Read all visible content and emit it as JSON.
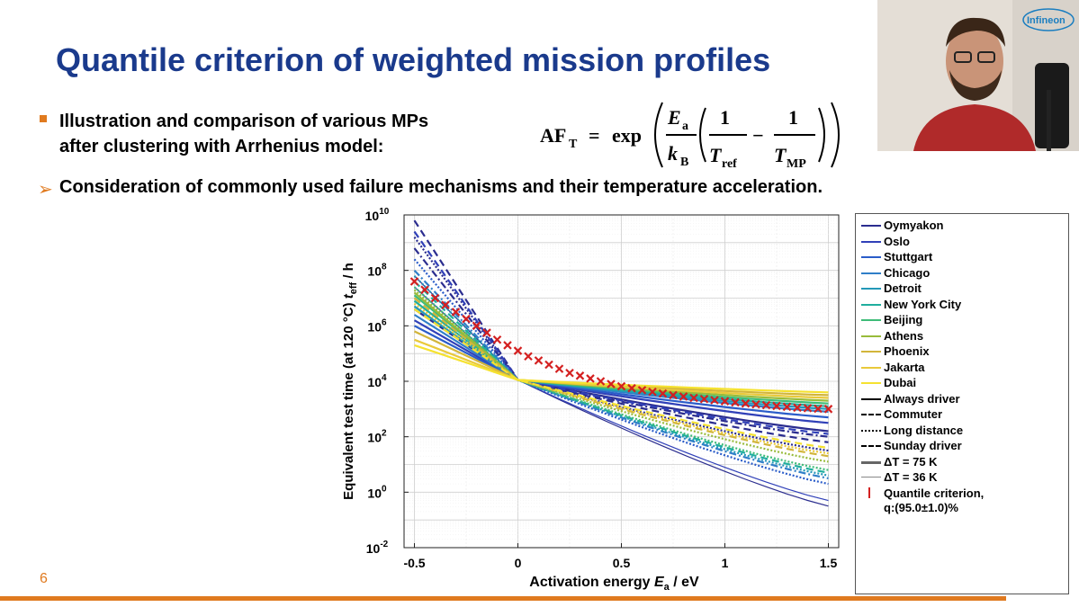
{
  "slide": {
    "title": "Quantile criterion of weighted mission profiles",
    "bullet_line1": "Illustration and comparison of various MPs",
    "bullet_line2": "after clustering with Arrhenius model:",
    "consideration": "Consideration of commonly used failure mechanisms and their temperature acceleration.",
    "page_number": "6",
    "logo_text": "Infineon",
    "formula": {
      "lhs": "AF",
      "lhs_sub": "T",
      "equals": "=",
      "exp": "exp",
      "ea": "E",
      "ea_sub": "a",
      "kb": "k",
      "kb_sub": "B",
      "one": "1",
      "tref": "T",
      "tref_sub": "ref",
      "minus": "−",
      "tmp": "T",
      "tmp_sub": "MP"
    }
  },
  "colors": {
    "title": "#1a3a8c",
    "accent": "#e07a1f",
    "quantile_marker": "#d42020"
  },
  "legend": [
    {
      "label": "Oymyakon",
      "color": "#2b2d8f",
      "style": "solid"
    },
    {
      "label": "Oslo",
      "color": "#3040b8",
      "style": "solid"
    },
    {
      "label": "Stuttgart",
      "color": "#2a5cc9",
      "style": "solid"
    },
    {
      "label": "Chicago",
      "color": "#2f7ec8",
      "style": "solid"
    },
    {
      "label": "Detroit",
      "color": "#2398b8",
      "style": "solid"
    },
    {
      "label": "New York City",
      "color": "#1fae9e",
      "style": "solid"
    },
    {
      "label": "Beijing",
      "color": "#3fbc78",
      "style": "solid"
    },
    {
      "label": "Athens",
      "color": "#98bb3a",
      "style": "solid"
    },
    {
      "label": "Phoenix",
      "color": "#d2b53a",
      "style": "solid"
    },
    {
      "label": "Jakarta",
      "color": "#e9c93a",
      "style": "solid"
    },
    {
      "label": "Dubai",
      "color": "#f5e230",
      "style": "solid"
    },
    {
      "label": "Always driver",
      "color": "#000000",
      "style": "solid"
    },
    {
      "label": "Commuter",
      "color": "#000000",
      "style": "dashed"
    },
    {
      "label": "Long distance",
      "color": "#000000",
      "style": "dotted"
    },
    {
      "label": "Sunday driver",
      "color": "#000000",
      "style": "dashdot"
    },
    {
      "label": "ΔT = 75 K",
      "color": "#666666",
      "style": "thick"
    },
    {
      "label": "ΔT = 36 K",
      "color": "#888888",
      "style": "thin"
    },
    {
      "label": "Quantile criterion,",
      "label2": "q:(95.0±1.0)%",
      "color": "#d42020",
      "style": "marker"
    }
  ],
  "chart_data": {
    "type": "line",
    "xlabel": "Activation energy Ea / eV",
    "ylabel": "Equivalent test time (at 120 °C) teff / h",
    "x_axis_label_main": "Activation energy ",
    "x_axis_label_var": "E",
    "x_axis_label_sub": "a",
    "x_axis_label_unit": " / eV",
    "y_axis_label_main": "Equivalent test time (at 120 °C) ",
    "y_axis_label_var": "t",
    "y_axis_label_sub": "eff",
    "y_axis_label_unit": " / h",
    "xlim": [
      -0.55,
      1.55
    ],
    "ylim_log10": [
      -2,
      10
    ],
    "y_scale": "log",
    "grid": true,
    "x_ticks": [
      "-0.5",
      "0",
      "0.5",
      "1",
      "1.5"
    ],
    "x_tick_values": [
      -0.5,
      0,
      0.5,
      1,
      1.5
    ],
    "y_ticks": [
      {
        "base": "10",
        "exp": "-2",
        "value": -2
      },
      {
        "base": "10",
        "exp": "0",
        "value": 0
      },
      {
        "base": "10",
        "exp": "2",
        "value": 2
      },
      {
        "base": "10",
        "exp": "4",
        "value": 4
      },
      {
        "base": "10",
        "exp": "6",
        "value": 6
      },
      {
        "base": "10",
        "exp": "8",
        "value": 8
      },
      {
        "base": "10",
        "exp": "10",
        "value": 10
      }
    ],
    "pivot": {
      "x": 0,
      "log10_y": 4.05
    },
    "series": [
      {
        "name": "Oymyakon",
        "color": "#2b2d8f",
        "profiles": [
          {
            "style": "solid",
            "log10_y_at_-0.5": 6.6,
            "log10_y_at_1.5": 2.2
          },
          {
            "style": "dashed",
            "log10_y_at_-0.5": 9.8,
            "log10_y_at_1.5": 1.8
          },
          {
            "style": "dotted",
            "log10_y_at_-0.5": 9.2,
            "log10_y_at_1.5": 1.5
          },
          {
            "style": "dashdot",
            "log10_y_at_-0.5": 8.8,
            "log10_y_at_1.5": 2.0
          },
          {
            "style": "thin",
            "log10_y_at_-0.5": 7.8,
            "log10_y_at_1.5": -0.5
          }
        ]
      },
      {
        "name": "Oslo",
        "color": "#3040b8",
        "profiles": [
          {
            "style": "solid",
            "log10_y_at_-0.5": 6.2,
            "log10_y_at_1.5": 2.5
          },
          {
            "style": "dashed",
            "log10_y_at_-0.5": 9.4,
            "log10_y_at_1.5": 2.1
          },
          {
            "style": "thin",
            "log10_y_at_-0.5": 7.4,
            "log10_y_at_1.5": -0.3
          }
        ]
      },
      {
        "name": "Stuttgart",
        "color": "#2a5cc9",
        "profiles": [
          {
            "style": "solid",
            "log10_y_at_-0.5": 6.0,
            "log10_y_at_1.5": 2.7
          },
          {
            "style": "dotted",
            "log10_y_at_-0.5": 8.4,
            "log10_y_at_1.5": 0.3
          }
        ]
      },
      {
        "name": "Chicago",
        "color": "#2f7ec8",
        "profiles": [
          {
            "style": "solid",
            "log10_y_at_-0.5": 6.4,
            "log10_y_at_1.5": 2.9
          },
          {
            "style": "dashdot",
            "log10_y_at_-0.5": 8.0,
            "log10_y_at_1.5": 0.5
          }
        ]
      },
      {
        "name": "Detroit",
        "color": "#2398b8",
        "profiles": [
          {
            "style": "solid",
            "log10_y_at_-0.5": 6.7,
            "log10_y_at_1.5": 3.0
          },
          {
            "style": "dotted",
            "log10_y_at_-0.5": 7.8,
            "log10_y_at_1.5": 0.6
          }
        ]
      },
      {
        "name": "New York City",
        "color": "#1fae9e",
        "profiles": [
          {
            "style": "solid",
            "log10_y_at_-0.5": 6.9,
            "log10_y_at_1.5": 3.1
          },
          {
            "style": "dashed",
            "log10_y_at_-0.5": 7.6,
            "log10_y_at_1.5": 0.7
          }
        ]
      },
      {
        "name": "Beijing",
        "color": "#3fbc78",
        "profiles": [
          {
            "style": "solid",
            "log10_y_at_-0.5": 7.1,
            "log10_y_at_1.5": 3.2
          },
          {
            "style": "dotted",
            "log10_y_at_-0.5": 7.4,
            "log10_y_at_1.5": 0.8
          }
        ]
      },
      {
        "name": "Athens",
        "color": "#98bb3a",
        "profiles": [
          {
            "style": "solid",
            "log10_y_at_-0.5": 7.2,
            "log10_y_at_1.5": 3.3
          },
          {
            "style": "dotted",
            "log10_y_at_-0.5": 7.3,
            "log10_y_at_1.5": 1.1
          }
        ]
      },
      {
        "name": "Phoenix",
        "color": "#d2b53a",
        "profiles": [
          {
            "style": "solid",
            "log10_y_at_-0.5": 5.8,
            "log10_y_at_1.5": 3.5
          },
          {
            "style": "dashed",
            "log10_y_at_-0.5": 7.0,
            "log10_y_at_1.5": 1.3
          }
        ]
      },
      {
        "name": "Jakarta",
        "color": "#e9c93a",
        "profiles": [
          {
            "style": "solid",
            "log10_y_at_-0.5": 5.5,
            "log10_y_at_1.5": 3.4
          },
          {
            "style": "dotted",
            "log10_y_at_-0.5": 6.8,
            "log10_y_at_1.5": 1.4
          }
        ]
      },
      {
        "name": "Dubai",
        "color": "#f5e230",
        "profiles": [
          {
            "style": "solid",
            "log10_y_at_-0.5": 5.3,
            "log10_y_at_1.5": 3.6
          },
          {
            "style": "dashed",
            "log10_y_at_-0.5": 6.6,
            "log10_y_at_1.5": 1.6
          }
        ]
      }
    ],
    "quantile_criterion": {
      "name": "Quantile criterion, q:(95.0±1.0)%",
      "x": [
        -0.5,
        -0.45,
        -0.4,
        -0.35,
        -0.3,
        -0.25,
        -0.2,
        -0.15,
        -0.1,
        -0.05,
        0.0,
        0.05,
        0.1,
        0.15,
        0.2,
        0.25,
        0.3,
        0.35,
        0.4,
        0.45,
        0.5,
        0.55,
        0.6,
        0.65,
        0.7,
        0.75,
        0.8,
        0.85,
        0.9,
        0.95,
        1.0,
        1.05,
        1.1,
        1.15,
        1.2,
        1.25,
        1.3,
        1.35,
        1.4,
        1.45,
        1.5
      ],
      "log10_y": [
        7.6,
        7.3,
        7.0,
        6.75,
        6.5,
        6.25,
        6.0,
        5.75,
        5.5,
        5.3,
        5.1,
        4.9,
        4.75,
        4.6,
        4.45,
        4.3,
        4.2,
        4.1,
        4.0,
        3.9,
        3.82,
        3.75,
        3.68,
        3.62,
        3.56,
        3.5,
        3.45,
        3.4,
        3.36,
        3.32,
        3.28,
        3.24,
        3.2,
        3.17,
        3.14,
        3.11,
        3.08,
        3.05,
        3.03,
        3.01,
        3.0
      ]
    }
  }
}
